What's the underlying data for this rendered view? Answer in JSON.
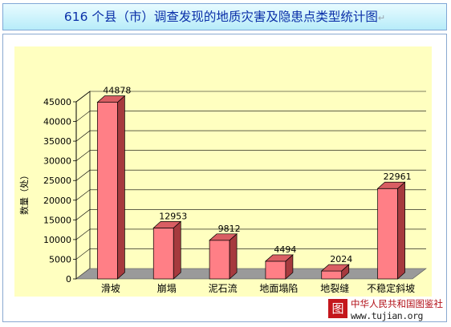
{
  "page_title": "616 个县（市）调查发现的地质灾害及隐患点类型统计图",
  "paragraph_mark": "↵",
  "chart_data": {
    "type": "bar",
    "title": "616 个县（市）调查发现的地质灾害及隐患点类型统计图",
    "ylabel": "数量（处）",
    "xlabel": "",
    "categories": [
      "滑坡",
      "崩塌",
      "泥石流",
      "地面塌陷",
      "地裂缝",
      "不稳定斜坡"
    ],
    "values": [
      44878,
      12953,
      9812,
      4494,
      2024,
      22961
    ],
    "value_labels": [
      "44878",
      "12953",
      "9812",
      "4494",
      "2024",
      "22961"
    ],
    "ylim": [
      0,
      45000
    ],
    "yticks": [
      0,
      5000,
      10000,
      15000,
      20000,
      25000,
      30000,
      35000,
      40000,
      45000
    ],
    "grid": true,
    "style": "3d",
    "colors": {
      "bar_front": "#ff7f86",
      "bar_side": "#a63a3e",
      "bar_top": "#d95e63",
      "plot_background": "#ffffc0",
      "floor": "#9a9a9a",
      "title_text": "#0a2fa8"
    }
  },
  "watermark": {
    "logo_char": "图",
    "name": "中华人民共和国图鉴社",
    "url": "www.tujian.org"
  }
}
